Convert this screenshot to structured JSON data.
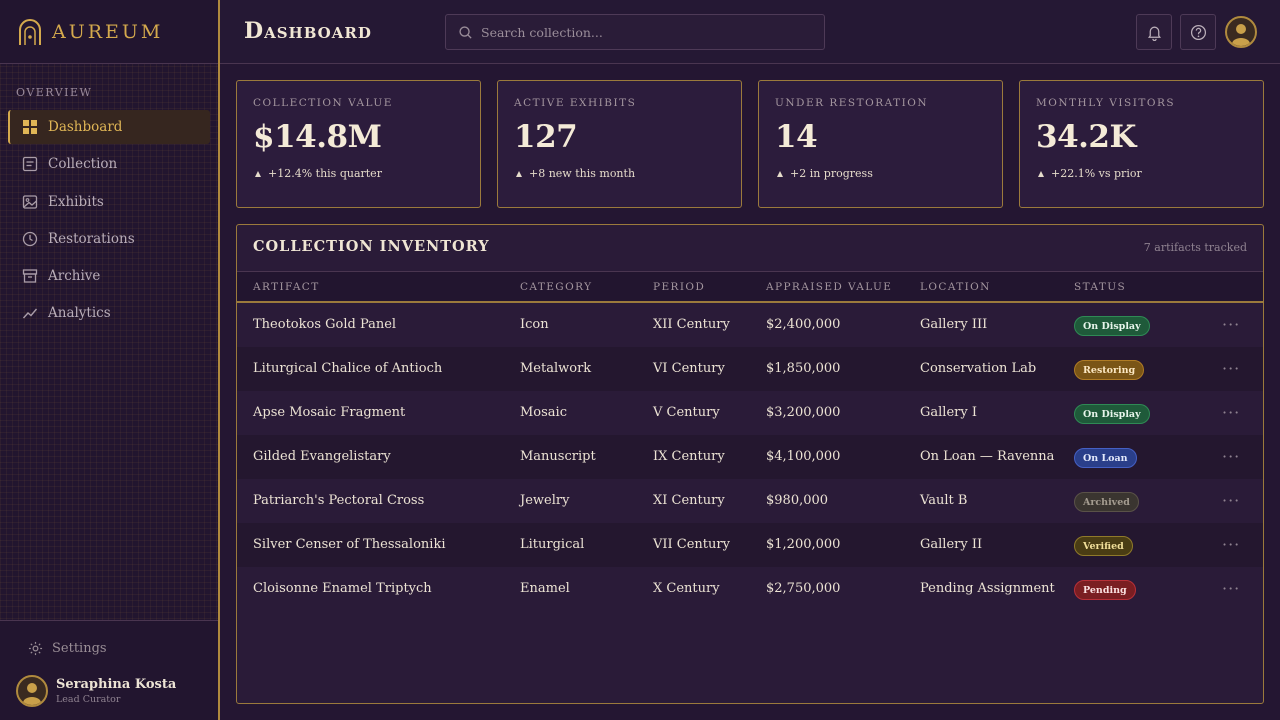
{
  "brand": {
    "name": "AUREUM"
  },
  "sidebar": {
    "section_label": "OVERVIEW",
    "items": [
      {
        "label": "Dashboard",
        "icon": "grid-icon",
        "active": true
      },
      {
        "label": "Collection",
        "icon": "list-icon",
        "active": false
      },
      {
        "label": "Exhibits",
        "icon": "image-icon",
        "active": false
      },
      {
        "label": "Restorations",
        "icon": "clock-icon",
        "active": false
      },
      {
        "label": "Archive",
        "icon": "archive-icon",
        "active": false
      },
      {
        "label": "Analytics",
        "icon": "trend-icon",
        "active": false
      }
    ],
    "settings_label": "Settings",
    "user": {
      "name": "Seraphina Kosta",
      "role": "Lead Curator"
    }
  },
  "header": {
    "title": "Dashboard",
    "search_placeholder": "Search collection..."
  },
  "stats": [
    {
      "label": "COLLECTION VALUE",
      "value": "$14.8M",
      "delta": "+12.4% this quarter"
    },
    {
      "label": "ACTIVE EXHIBITS",
      "value": "127",
      "delta": "+8 new this month"
    },
    {
      "label": "UNDER RESTORATION",
      "value": "14",
      "delta": "+2 in progress"
    },
    {
      "label": "MONTHLY VISITORS",
      "value": "34.2K",
      "delta": "+22.1% vs prior"
    }
  ],
  "inventory": {
    "title": "COLLECTION INVENTORY",
    "meta": "7 artifacts tracked",
    "columns": [
      "ARTIFACT",
      "CATEGORY",
      "PERIOD",
      "APPRAISED VALUE",
      "LOCATION",
      "STATUS"
    ],
    "rows": [
      {
        "artifact": "Theotokos Gold Panel",
        "category": "Icon",
        "period": "XII Century",
        "value": "$2,400,000",
        "location": "Gallery III",
        "status": "On Display"
      },
      {
        "artifact": "Liturgical Chalice of Antioch",
        "category": "Metalwork",
        "period": "VI Century",
        "value": "$1,850,000",
        "location": "Conservation Lab",
        "status": "Restoring"
      },
      {
        "artifact": "Apse Mosaic Fragment",
        "category": "Mosaic",
        "period": "V Century",
        "value": "$3,200,000",
        "location": "Gallery I",
        "status": "On Display"
      },
      {
        "artifact": "Gilded Evangelistary",
        "category": "Manuscript",
        "period": "IX Century",
        "value": "$4,100,000",
        "location": "On Loan — Ravenna",
        "status": "On Loan"
      },
      {
        "artifact": "Patriarch's Pectoral Cross",
        "category": "Jewelry",
        "period": "XI Century",
        "value": "$980,000",
        "location": "Vault B",
        "status": "Archived"
      },
      {
        "artifact": "Silver Censer of Thessaloniki",
        "category": "Liturgical",
        "period": "VII Century",
        "value": "$1,200,000",
        "location": "Gallery II",
        "status": "Verified"
      },
      {
        "artifact": "Cloisonne Enamel Triptych",
        "category": "Enamel",
        "period": "X Century",
        "value": "$2,750,000",
        "location": "Pending Assignment",
        "status": "Pending"
      }
    ],
    "status_colors": {
      "On Display": {
        "bg": "#1f5a3a",
        "fg": "#e6f4ea",
        "border": "#2f8a55"
      },
      "Restoring": {
        "bg": "#7a5516",
        "fg": "#fbe7c2",
        "border": "#b07c24"
      },
      "On Loan": {
        "bg": "#2a3f8a",
        "fg": "#e3e9fb",
        "border": "#4560c4"
      },
      "Archived": {
        "bg": "#3a3530",
        "fg": "#a49c90",
        "border": "#5a5248"
      },
      "Verified": {
        "bg": "#4a3d14",
        "fg": "#f1df9a",
        "border": "#8f7a2a"
      },
      "Pending": {
        "bg": "#7a1e22",
        "fg": "#fbe0e0",
        "border": "#b83038"
      }
    }
  },
  "colors": {
    "gold": "#d4a94d",
    "background": "#241632",
    "panel": "#2a1b38"
  }
}
